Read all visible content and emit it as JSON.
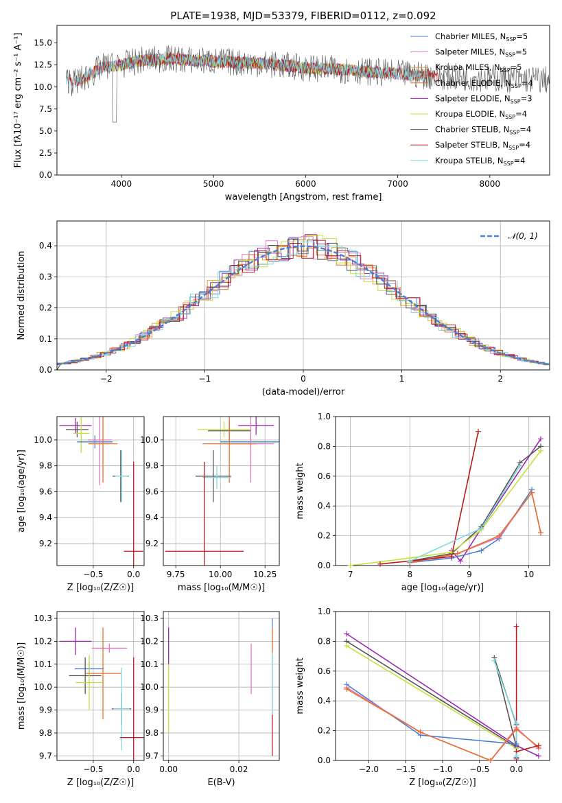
{
  "figure": {
    "title": "PLATE=1938, MJD=53379, FIBERID=0112, z=0.092"
  },
  "chart_data": [
    {
      "id": "spectrum",
      "type": "line",
      "xlabel": "wavelength [Angstrom, rest frame]",
      "ylabel": "Flux [fλ10⁻¹⁷ erg cm⁻² s⁻¹ A⁻¹]",
      "xlim": [
        3300,
        8650
      ],
      "ylim": [
        0,
        17
      ],
      "xticks": [
        4000,
        5000,
        6000,
        7000,
        8000
      ],
      "yticks": [
        0.0,
        2.5,
        5.0,
        7.5,
        10.0,
        12.5,
        15.0
      ],
      "ytick_labels": [
        "0.0",
        "2.5",
        "5.0",
        "7.5",
        "10.0",
        "12.5",
        "15.0"
      ],
      "grid": false,
      "legend_position": "top-right",
      "series": [
        {
          "name": "Chabrier MILES, N",
          "sub": "SSP",
          "suffix": "=5",
          "color": "#4a7fd4",
          "x_range": [
            3500,
            7300
          ]
        },
        {
          "name": "Salpeter MILES, N",
          "sub": "SSP",
          "suffix": "=5",
          "color": "#e377c2",
          "x_range": [
            3500,
            7300
          ]
        },
        {
          "name": "Kroupa MILES, N",
          "sub": "SSP",
          "suffix": "=5",
          "color": "#e8a33b",
          "x_range": [
            3500,
            7300
          ]
        },
        {
          "name": "Chabrier ELODIE, N",
          "sub": "SSP",
          "suffix": "=4",
          "color": "#e8702a",
          "x_range": [
            3900,
            6800
          ]
        },
        {
          "name": "Salpeter ELODIE, N",
          "sub": "SSP",
          "suffix": "=3",
          "color": "#9c27b0",
          "x_range": [
            3900,
            6800
          ]
        },
        {
          "name": "Kroupa ELODIE, N",
          "sub": "SSP",
          "suffix": "=4",
          "color": "#c6e03a",
          "x_range": [
            3900,
            6800
          ]
        },
        {
          "name": "Chabrier STELIB, N",
          "sub": "SSP",
          "suffix": "=4",
          "color": "#555555",
          "x_range": [
            3400,
            8650
          ]
        },
        {
          "name": "Salpeter STELIB, N",
          "sub": "SSP",
          "suffix": "=4",
          "color": "#b71c1c",
          "x_range": [
            3400,
            7450
          ]
        },
        {
          "name": "Kroupa STELIB, N",
          "sub": "SSP",
          "suffix": "=4",
          "color": "#7fd8e0",
          "x_range": [
            3400,
            7300
          ]
        }
      ],
      "continuum": [
        [
          3450,
          10.5
        ],
        [
          3600,
          11.0
        ],
        [
          3800,
          12.3
        ],
        [
          4000,
          12.5
        ],
        [
          4200,
          13.0
        ],
        [
          4500,
          13.2
        ],
        [
          5000,
          12.9
        ],
        [
          5500,
          12.7
        ],
        [
          6000,
          12.2
        ],
        [
          6500,
          11.9
        ],
        [
          7000,
          11.5
        ],
        [
          7500,
          11.2
        ],
        [
          8000,
          11.0
        ],
        [
          8600,
          10.8
        ]
      ]
    },
    {
      "id": "residuals",
      "type": "line",
      "xlabel": "(data-model)/error",
      "ylabel": "Normed distribution",
      "xlim": [
        -2.5,
        2.5
      ],
      "ylim": [
        0,
        0.48
      ],
      "xticks": [
        -2,
        -1,
        0,
        1,
        2
      ],
      "xtick_labels": [
        "−2",
        "−1",
        "0",
        "1",
        "2"
      ],
      "yticks": [
        0.0,
        0.1,
        0.2,
        0.3,
        0.4
      ],
      "ytick_labels": [
        "0.0",
        "0.1",
        "0.2",
        "0.3",
        "0.4"
      ],
      "grid": true,
      "legend_position": "top-right",
      "gaussian_label": "𝒩(0, 1)",
      "gaussian_color": "#4a7fd4"
    },
    {
      "id": "age-vs-Z",
      "type": "scatter",
      "xlabel": "Z [log₁₀(Z/Z☉)]",
      "ylabel": "age  [log₁₀(age/yr)]",
      "xlim": [
        -0.95,
        0.13
      ],
      "ylim": [
        9.03,
        10.18
      ],
      "xticks": [
        -0.5,
        0.0
      ],
      "xtick_labels": [
        "−0.5",
        "0.0"
      ],
      "yticks": [
        9.2,
        9.4,
        9.6,
        9.8,
        10.0
      ],
      "ytick_labels": [
        "9.2",
        "9.4",
        "9.6",
        "9.8",
        "10.0"
      ],
      "grid": true,
      "points": [
        {
          "x": -0.72,
          "xerr": 0.2,
          "y": 10.11,
          "yerr": 0.06,
          "color": "#9c27b0"
        },
        {
          "x": -0.7,
          "xerr": 0.14,
          "y": 10.08,
          "yerr": 0.06,
          "color": "#555555"
        },
        {
          "x": -0.65,
          "xerr": 0.1,
          "y": 10.05,
          "yerr": 0.15,
          "color": "#c6e03a"
        },
        {
          "x": -0.48,
          "xerr": 0.22,
          "y": 9.985,
          "yerr": 0.05,
          "color": "#4a7fd4"
        },
        {
          "x": -0.42,
          "xerr": 0.15,
          "y": 10.0,
          "yerr": 0.35,
          "color": "#e377c2"
        },
        {
          "x": -0.38,
          "xerr": 0.18,
          "y": 9.97,
          "yerr": 0.3,
          "color": "#e8702a"
        },
        {
          "x": -0.16,
          "xerr": 0.1,
          "y": 9.72,
          "yerr": 0.2,
          "color": "#555555"
        },
        {
          "x": -0.15,
          "xerr": 0.08,
          "y": 9.72,
          "yerr": 0.2,
          "color": "#7fd8e0"
        },
        {
          "x": 0.0,
          "xerr": 0.12,
          "y": 9.14,
          "yerr": 0.69,
          "color": "#b71c1c"
        }
      ]
    },
    {
      "id": "age-vs-mass",
      "type": "scatter",
      "xlabel": "mass [log₁₀(M/M☉)]",
      "ylabel": "",
      "xlim": [
        9.68,
        10.33
      ],
      "ylim": [
        9.03,
        10.18
      ],
      "xticks": [
        9.75,
        10.0,
        10.25
      ],
      "xtick_labels": [
        "9.75",
        "10.00",
        "10.25"
      ],
      "yticks": [
        9.2,
        9.4,
        9.6,
        9.8,
        10.0
      ],
      "ytick_labels": [
        "9.2",
        "9.4",
        "9.6",
        "9.8",
        "10.0"
      ],
      "grid": true,
      "points": [
        {
          "x": 10.2,
          "xerr": 0.1,
          "y": 10.11,
          "yerr": 0.07,
          "color": "#9c27b0"
        },
        {
          "x": 10.02,
          "xerr": 0.15,
          "y": 10.08,
          "yerr": 0.06,
          "color": "#c6e03a"
        },
        {
          "x": 10.05,
          "xerr": 0.12,
          "y": 10.07,
          "yerr": 0.08,
          "color": "#555555"
        },
        {
          "x": 10.17,
          "xerr": 0.17,
          "y": 9.985,
          "yerr": 0.05,
          "color": "#4a7fd4"
        },
        {
          "x": 10.17,
          "xerr": 0.13,
          "y": 9.97,
          "yerr": 0.3,
          "color": "#e377c2"
        },
        {
          "x": 10.05,
          "xerr": 0.15,
          "y": 9.97,
          "yerr": 0.3,
          "color": "#e8702a"
        },
        {
          "x": 9.96,
          "xerr": 0.1,
          "y": 9.72,
          "yerr": 0.2,
          "color": "#555555"
        },
        {
          "x": 9.98,
          "xerr": 0.08,
          "y": 9.71,
          "yerr": 0.09,
          "color": "#7fd8e0"
        },
        {
          "x": 9.91,
          "xerr": 0.22,
          "y": 9.14,
          "yerr": 0.69,
          "color": "#b71c1c"
        }
      ]
    },
    {
      "id": "mass-weight-vs-age",
      "type": "line",
      "xlabel": "age  [log₁₀(age/yr)]",
      "ylabel": "mass weight",
      "xlim": [
        6.75,
        10.35
      ],
      "ylim": [
        0,
        1.0
      ],
      "xticks": [
        7,
        8,
        9,
        10
      ],
      "xtick_labels": [
        "7",
        "8",
        "9",
        "10"
      ],
      "yticks": [
        0.0,
        0.2,
        0.4,
        0.6,
        0.8,
        1.0
      ],
      "ytick_labels": [
        "0.0",
        "0.2",
        "0.4",
        "0.6",
        "0.8",
        "1.0"
      ],
      "grid": true,
      "series": [
        {
          "color": "#9c27b0",
          "x": [
            8.7,
            8.85,
            9.2,
            10.2
          ],
          "y": [
            0.1,
            0.03,
            0.25,
            0.85
          ]
        },
        {
          "color": "#555555",
          "x": [
            8.0,
            8.7,
            9.2,
            9.85,
            10.2
          ],
          "y": [
            0.03,
            0.08,
            0.26,
            0.69,
            0.8
          ]
        },
        {
          "color": "#c6e03a",
          "x": [
            7.0,
            8.0,
            8.7,
            9.2,
            10.2
          ],
          "y": [
            0.0,
            0.05,
            0.09,
            0.24,
            0.77
          ]
        },
        {
          "color": "#4a7fd4",
          "x": [
            8.0,
            8.7,
            9.2,
            9.5,
            10.05
          ],
          "y": [
            0.02,
            0.05,
            0.1,
            0.18,
            0.51
          ]
        },
        {
          "color": "#e377c2",
          "x": [
            8.0,
            8.8,
            9.5,
            10.05,
            10.2
          ],
          "y": [
            0.02,
            0.08,
            0.19,
            0.49,
            0.22
          ]
        },
        {
          "color": "#e8702a",
          "x": [
            8.0,
            8.8,
            9.5,
            10.05,
            10.2
          ],
          "y": [
            0.02,
            0.08,
            0.2,
            0.49,
            0.22
          ]
        },
        {
          "color": "#b71c1c",
          "x": [
            7.5,
            8.7,
            9.15
          ],
          "y": [
            0.01,
            0.06,
            0.9
          ]
        },
        {
          "color": "#7fd8e0",
          "x": [
            8.0,
            9.2,
            9.85
          ],
          "y": [
            0.03,
            0.25,
            0.67
          ]
        }
      ]
    },
    {
      "id": "mass-vs-Z",
      "type": "scatter",
      "xlabel": "Z [log₁₀(Z/Z☉)]",
      "ylabel": "mass [log₁₀(M/M☉)]",
      "xlim": [
        -0.95,
        0.13
      ],
      "ylim": [
        9.68,
        10.33
      ],
      "xticks": [
        -0.5,
        0.0
      ],
      "xtick_labels": [
        "−0.5",
        "0.0"
      ],
      "yticks": [
        9.7,
        9.8,
        9.9,
        10.0,
        10.1,
        10.2,
        10.3
      ],
      "ytick_labels": [
        "9.7",
        "9.8",
        "9.9",
        "10.0",
        "10.1",
        "10.2",
        "10.3"
      ],
      "grid": true,
      "points": [
        {
          "x": -0.72,
          "xerr": 0.2,
          "y": 10.2,
          "yerr": 0.06,
          "color": "#9c27b0"
        },
        {
          "x": -0.3,
          "xerr": 0.22,
          "y": 10.17,
          "yerr": 0.02,
          "color": "#e377c2"
        },
        {
          "x": -0.55,
          "xerr": 0.18,
          "y": 10.08,
          "yerr": 0.03,
          "color": "#4a7fd4"
        },
        {
          "x": -0.6,
          "xerr": 0.2,
          "y": 10.05,
          "yerr": 0.08,
          "color": "#555555"
        },
        {
          "x": -0.38,
          "xerr": 0.22,
          "y": 10.06,
          "yerr": 0.2,
          "color": "#e8702a"
        },
        {
          "x": -0.55,
          "xerr": 0.17,
          "y": 10.02,
          "yerr": 0.12,
          "color": "#c6e03a"
        },
        {
          "x": -0.15,
          "xerr": 0.12,
          "y": 9.905,
          "yerr": 0.07,
          "color": "#555555"
        },
        {
          "x": -0.15,
          "xerr": 0.1,
          "y": 9.905,
          "yerr": 0.18,
          "color": "#7fd8e0"
        },
        {
          "x": 0.0,
          "xerr": 0.17,
          "y": 9.78,
          "yerr": 0.35,
          "color": "#b71c1c"
        }
      ]
    },
    {
      "id": "mass-vs-ebv",
      "type": "scatter",
      "xlabel": "E(B-V)",
      "ylabel": "",
      "xlim": [
        -0.0015,
        0.0315
      ],
      "ylim": [
        9.68,
        10.33
      ],
      "xticks": [
        0.0,
        0.02
      ],
      "xtick_labels": [
        "0.00",
        "0.02"
      ],
      "yticks": [
        9.7,
        9.8,
        9.9,
        10.0,
        10.1,
        10.2,
        10.3
      ],
      "ytick_labels": [
        "9.7",
        "9.8",
        "9.9",
        "10.0",
        "10.1",
        "10.2",
        "10.3"
      ],
      "grid": true,
      "points": [
        {
          "x": 0.0,
          "xerr": 0.0,
          "y": 10.18,
          "yerr": 0.08,
          "color": "#9c27b0"
        },
        {
          "x": 0.0,
          "xerr": 0.0,
          "y": 9.95,
          "yerr": 0.15,
          "color": "#c6e03a"
        },
        {
          "x": 0.0235,
          "xerr": 0.0,
          "y": 10.08,
          "yerr": 0.11,
          "color": "#e377c2"
        },
        {
          "x": 0.0295,
          "xerr": 0.0,
          "y": 10.22,
          "yerr": 0.08,
          "color": "#4a7fd4"
        },
        {
          "x": 0.0295,
          "xerr": 0.0,
          "y": 10.06,
          "yerr": 0.2,
          "color": "#e8702a"
        },
        {
          "x": 0.0295,
          "xerr": 0.0,
          "y": 10.01,
          "yerr": 0.14,
          "color": "#7fd8e0"
        },
        {
          "x": 0.0295,
          "xerr": 0.0,
          "y": 9.79,
          "yerr": 0.09,
          "color": "#b71c1c"
        }
      ]
    },
    {
      "id": "mass-weight-vs-Z",
      "type": "line",
      "xlabel": "Z [log₁₀(Z/Z☉)]",
      "ylabel": "mass weight",
      "xlim": [
        -2.45,
        0.45
      ],
      "ylim": [
        0,
        1.0
      ],
      "xticks": [
        -2.0,
        -1.5,
        -1.0,
        -0.5,
        0.0
      ],
      "xtick_labels": [
        "−2.0",
        "−1.5",
        "−1.0",
        "−0.5",
        "0.0"
      ],
      "yticks": [
        0.0,
        0.2,
        0.4,
        0.6,
        0.8,
        1.0
      ],
      "ytick_labels": [
        "0.0",
        "0.2",
        "0.4",
        "0.6",
        "0.8",
        "1.0"
      ],
      "grid": true,
      "series": [
        {
          "color": "#9c27b0",
          "x": [
            -2.3,
            0.0,
            0.3
          ],
          "y": [
            0.85,
            0.1,
            0.03
          ]
        },
        {
          "color": "#555555",
          "x": [
            -2.3,
            0.0,
            -0.3,
            0.0
          ],
          "y": [
            0.8,
            0.09,
            0.69,
            0.24
          ]
        },
        {
          "color": "#c6e03a",
          "x": [
            -2.3,
            0.0
          ],
          "y": [
            0.77,
            0.08
          ]
        },
        {
          "color": "#4a7fd4",
          "x": [
            -2.3,
            -1.3,
            0.0,
            0.0
          ],
          "y": [
            0.51,
            0.17,
            0.11,
            0.02
          ]
        },
        {
          "color": "#e377c2",
          "x": [
            -2.3,
            -1.3,
            -0.35,
            0.0,
            0.3
          ],
          "y": [
            0.49,
            0.19,
            0.0,
            0.22,
            0.08
          ]
        },
        {
          "color": "#e8702a",
          "x": [
            -2.3,
            -1.3,
            -0.35,
            0.0,
            0.3
          ],
          "y": [
            0.48,
            0.19,
            0.0,
            0.21,
            0.09
          ]
        },
        {
          "color": "#b71c1c",
          "x": [
            0.0,
            0.0,
            0.0,
            0.3
          ],
          "y": [
            0.9,
            0.01,
            0.06,
            0.1
          ]
        },
        {
          "color": "#7fd8e0",
          "x": [
            -0.3,
            0.0,
            0.0
          ],
          "y": [
            0.67,
            0.25,
            0.03
          ]
        }
      ]
    }
  ]
}
